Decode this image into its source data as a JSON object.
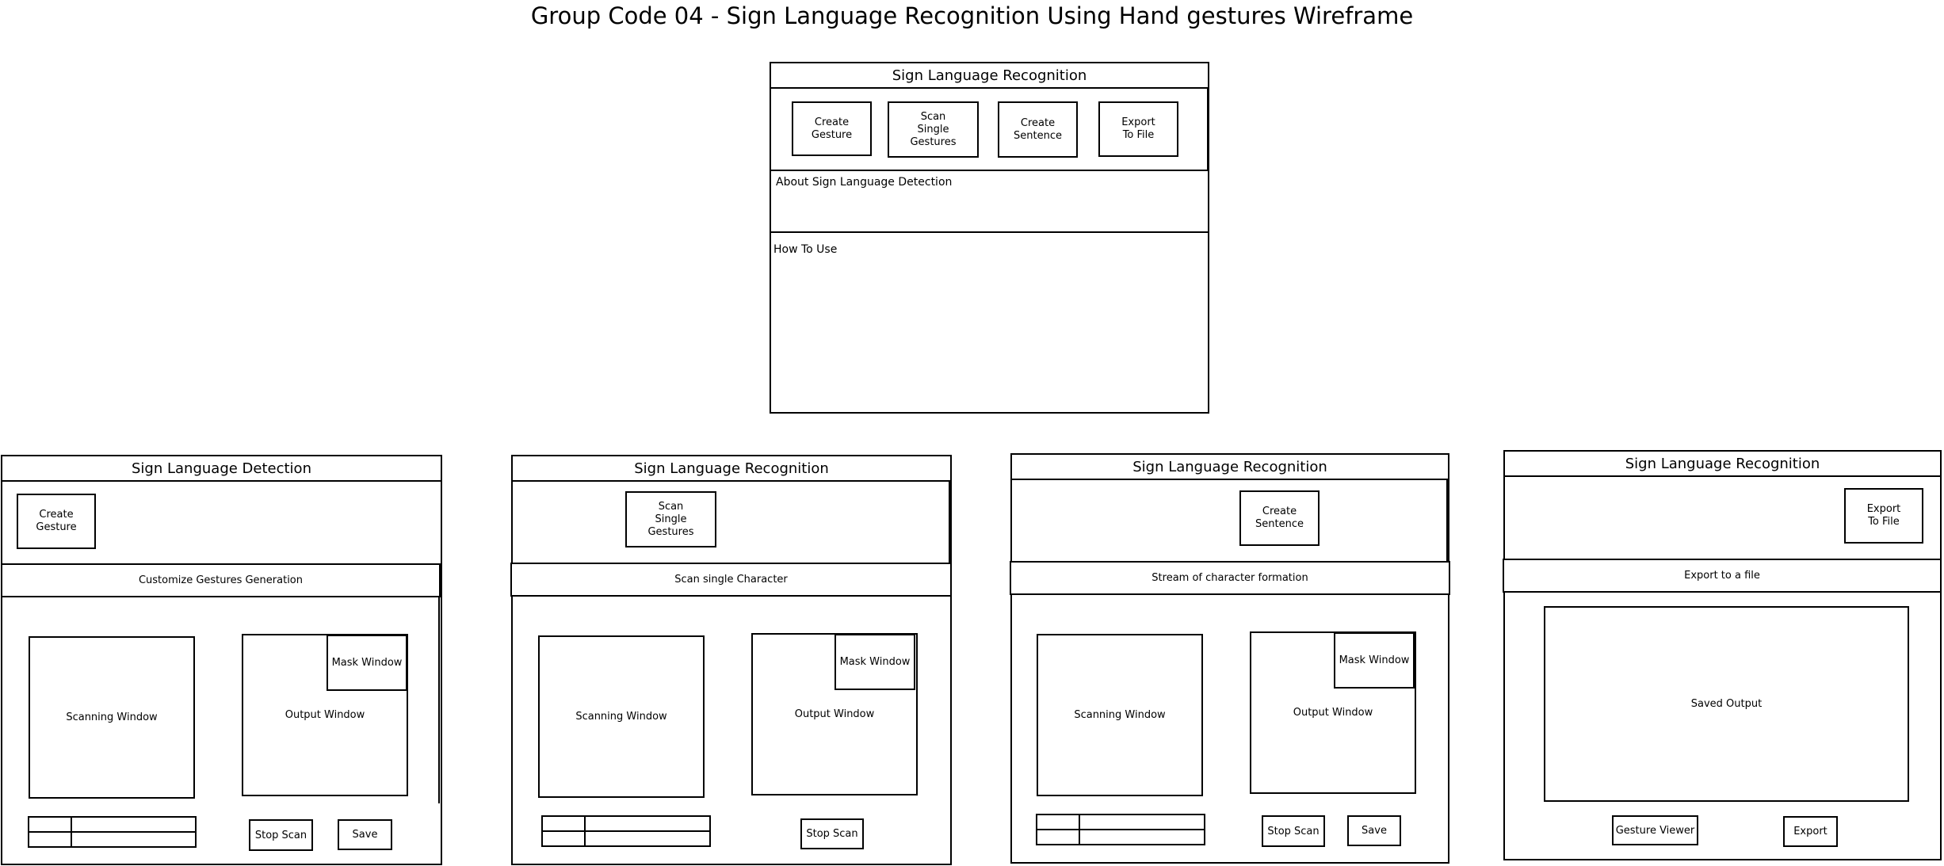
{
  "diagram_title": "Group Code 04 - Sign Language Recognition Using Hand gestures Wireframe",
  "home": {
    "header": "Sign Language Recognition",
    "buttons": {
      "create_gesture": "Create\nGesture",
      "scan_single": "Scan\nSingle\nGestures",
      "create_sentence": "Create\nSentence",
      "export_file": "Export\nTo File"
    },
    "about": "About Sign Language Detection",
    "how_to": "How To Use"
  },
  "screen_create": {
    "header": "Sign Language Detection",
    "action_button": "Create\nGesture",
    "section": "Customize Gestures Generation",
    "scanning": "Scanning Window",
    "output": "Output Window",
    "mask": "Mask Window",
    "stop": "Stop  Scan",
    "save": "Save"
  },
  "screen_scan": {
    "header": "Sign Language Recognition",
    "action_button": "Scan\nSingle\nGestures",
    "section": "Scan single Character",
    "scanning": "Scanning Window",
    "output": "Output Window",
    "mask": "Mask Window",
    "stop": "Stop  Scan"
  },
  "screen_sentence": {
    "header": "Sign Language Recognition",
    "action_button": "Create\nSentence",
    "section": "Stream of character formation",
    "scanning": "Scanning Window",
    "output": "Output Window",
    "mask": "Mask Window",
    "stop": "Stop  Scan",
    "save": "Save"
  },
  "screen_export": {
    "header": "Sign Language Recognition",
    "action_button": "Export\nTo File",
    "section": "Export to a file",
    "saved": "Saved Output",
    "viewer": "Gesture Viewer",
    "export": "Export"
  }
}
